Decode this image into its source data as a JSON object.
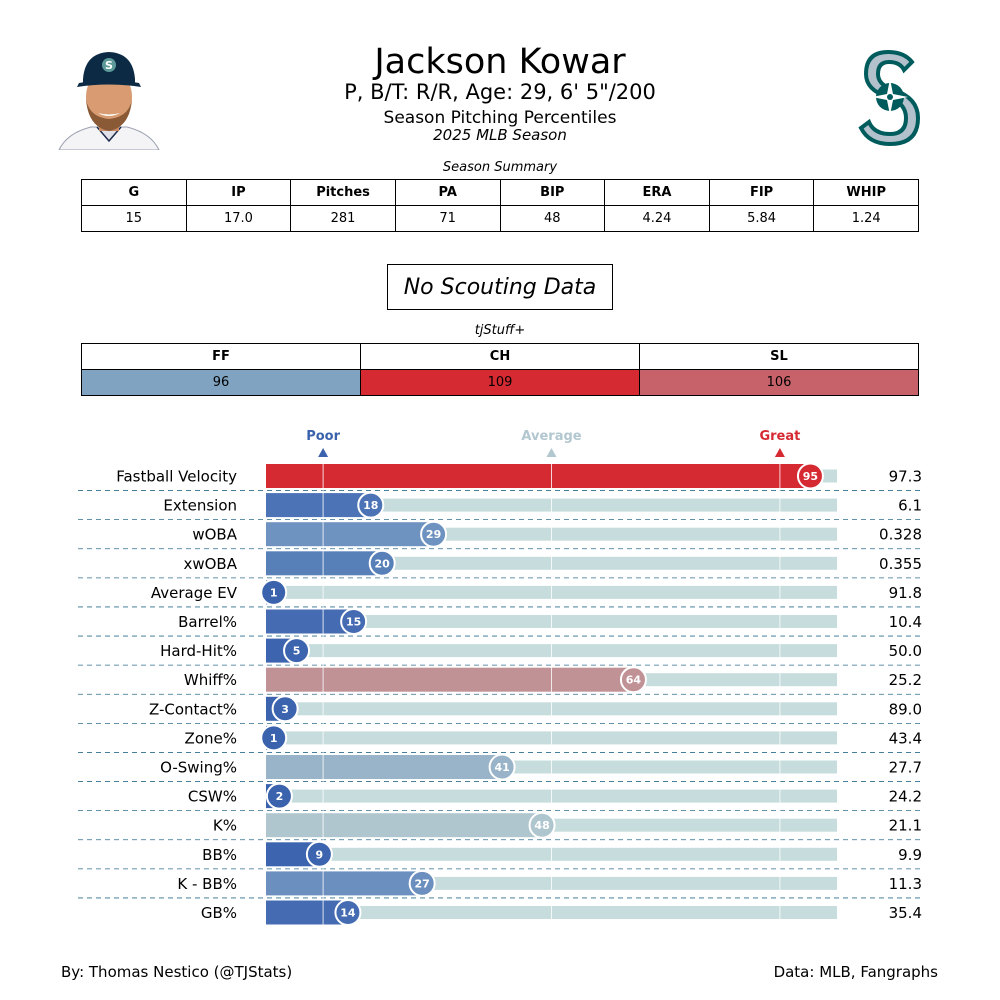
{
  "header": {
    "player_name": "Jackson Kowar",
    "player_meta": "P, B/T: R/R, Age: 29, 6' 5\"/200",
    "subtitle": "Season Pitching Percentiles",
    "season": "2025 MLB Season"
  },
  "summary": {
    "caption": "Season Summary",
    "columns": [
      "G",
      "IP",
      "Pitches",
      "PA",
      "BIP",
      "ERA",
      "FIP",
      "WHIP"
    ],
    "values": [
      "15",
      "17.0",
      "281",
      "71",
      "48",
      "4.24",
      "5.84",
      "1.24"
    ]
  },
  "scouting": {
    "label": "No Scouting Data"
  },
  "stuff": {
    "caption": "tjStuff+",
    "columns": [
      "FF",
      "CH",
      "SL"
    ],
    "values": [
      "96",
      "109",
      "106"
    ],
    "colors": [
      "#7fa3c0",
      "#d62a33",
      "#c8626a"
    ]
  },
  "scale": {
    "poor": "Poor",
    "average": "Average",
    "great": "Great"
  },
  "colors": {
    "poor": "#3a62ad",
    "average": "#b2c7d0",
    "great": "#d62a33",
    "track": "#c7dcdc"
  },
  "chart_data": {
    "type": "bar",
    "orientation": "horizontal",
    "xlim": [
      0,
      100
    ],
    "categories": [
      "Fastball Velocity",
      "Extension",
      "wOBA",
      "xwOBA",
      "Average EV",
      "Barrel%",
      "Hard-Hit%",
      "Whiff%",
      "Z-Contact%",
      "Zone%",
      "O-Swing%",
      "CSW%",
      "K%",
      "BB%",
      "K - BB%",
      "GB%"
    ],
    "percentiles": [
      95,
      18,
      29,
      20,
      1,
      15,
      5,
      64,
      3,
      1,
      41,
      2,
      48,
      9,
      27,
      14
    ],
    "stat_values": [
      "97.3",
      "6.1",
      "0.328",
      "0.355",
      "91.8",
      "10.4",
      "50.0",
      "25.2",
      "89.0",
      "43.4",
      "27.7",
      "24.2",
      "21.1",
      "9.9",
      "11.3",
      "35.4"
    ],
    "bar_colors": [
      "#d62a33",
      "#4b73b5",
      "#6f93c0",
      "#577fb8",
      "#3a62ad",
      "#456bb2",
      "#3d64ae",
      "#c09296",
      "#3b63ae",
      "#3a62ad",
      "#99b4c8",
      "#3a62ad",
      "#b0c6cf",
      "#3d64ae",
      "#6b8fbf",
      "#456cb2"
    ]
  },
  "footer": {
    "credit": "By: Thomas Nestico (@TJStats)",
    "source": "Data: MLB, Fangraphs"
  }
}
